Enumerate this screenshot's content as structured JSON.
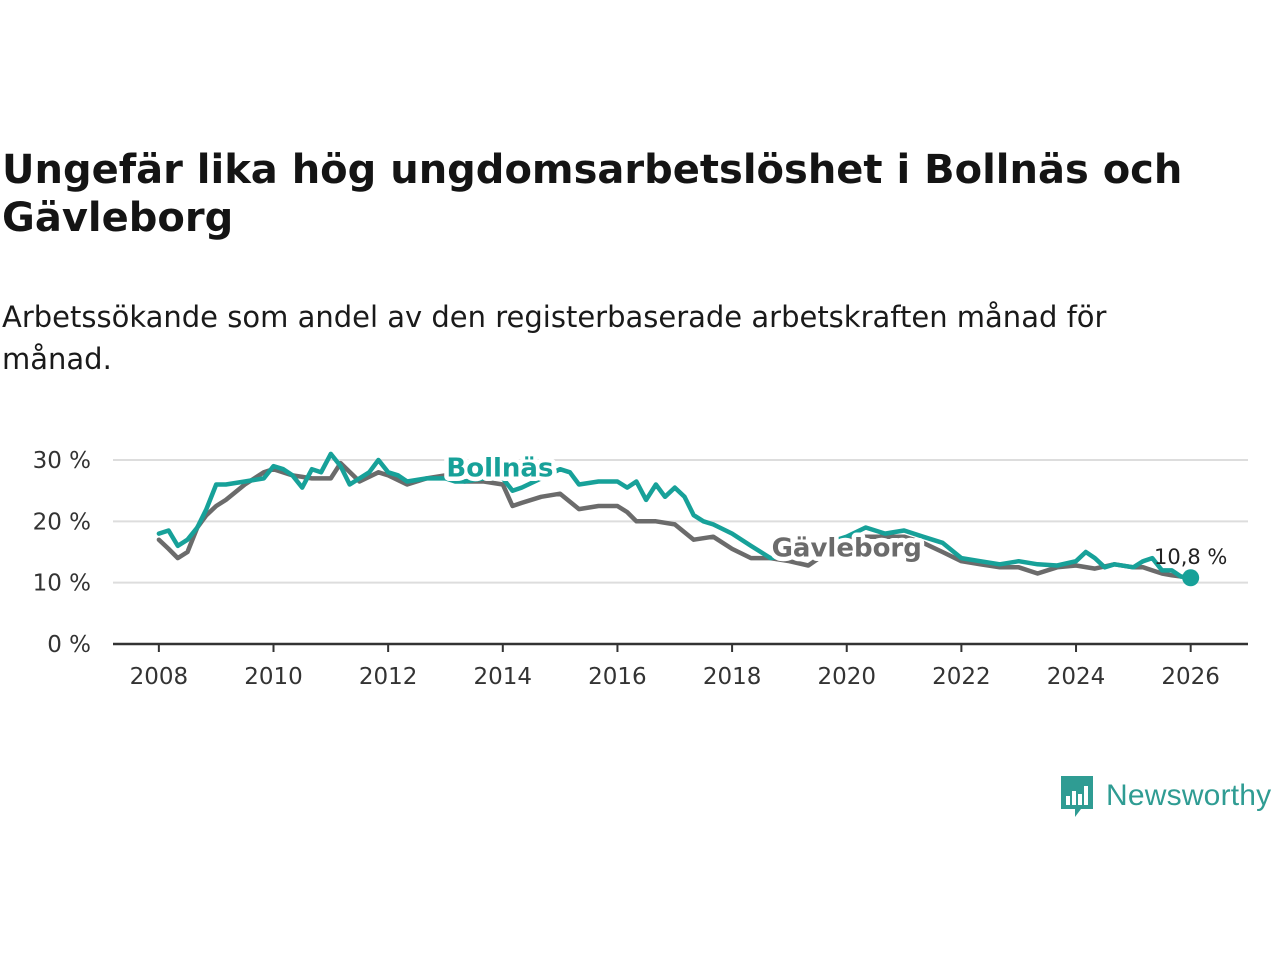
{
  "title": "Ungefär lika hög ungdomsarbetslöshet i Bollnäs och Gävleborg",
  "subtitle": "Arbetssökande som andel av den registerbaserade arbetskraften månad för månad.",
  "brand": {
    "name": "Newsworthy",
    "icon": "newsworthy-logo-icon",
    "color": "#2f9c93"
  },
  "chart_data": {
    "type": "line",
    "title": "Ungefär lika hög ungdomsarbetslöshet i Bollnäs och Gävleborg",
    "xlabel": "",
    "ylabel": "",
    "xlim": [
      2007.2,
      2027
    ],
    "ylim": [
      0,
      30
    ],
    "grid": true,
    "x_ticks": [
      2008,
      2010,
      2012,
      2014,
      2016,
      2018,
      2020,
      2022,
      2024,
      2026
    ],
    "x_tick_labels": [
      "2008",
      "2010",
      "2012",
      "2014",
      "2016",
      "2018",
      "2020",
      "2022",
      "2024",
      "2026"
    ],
    "y_ticks": [
      0,
      10,
      20,
      30
    ],
    "y_tick_labels": [
      "0 %",
      "10 %",
      "20 %",
      "30 %"
    ],
    "series": [
      {
        "name": "Gävleborg",
        "label": "Gävleborg",
        "color": "#6b6b6b",
        "x": [
          2008.0,
          2008.17,
          2008.33,
          2008.5,
          2008.67,
          2008.83,
          2009.0,
          2009.17,
          2009.5,
          2009.83,
          2010.0,
          2010.33,
          2010.67,
          2011.0,
          2011.17,
          2011.5,
          2011.83,
          2012.0,
          2012.33,
          2012.67,
          2013.0,
          2013.33,
          2013.67,
          2014.0,
          2014.17,
          2014.33,
          2014.67,
          2015.0,
          2015.33,
          2015.67,
          2016.0,
          2016.17,
          2016.33,
          2016.67,
          2017.0,
          2017.33,
          2017.67,
          2018.0,
          2018.33,
          2018.67,
          2019.0,
          2019.33,
          2019.67,
          2020.0,
          2020.33,
          2020.67,
          2021.0,
          2021.33,
          2021.67,
          2022.0,
          2022.33,
          2022.67,
          2023.0,
          2023.33,
          2023.67,
          2024.0,
          2024.33,
          2024.67,
          2025.0,
          2025.17,
          2025.33,
          2025.5,
          2025.67,
          2026.0
        ],
        "values": [
          17,
          15.5,
          14,
          15,
          19,
          21,
          22.5,
          23.5,
          26,
          28,
          28.5,
          27.5,
          27,
          27,
          29.5,
          26.5,
          28,
          27.5,
          26,
          27,
          27.5,
          26.5,
          26.5,
          26,
          22.5,
          23,
          24,
          24.5,
          22,
          22.5,
          22.5,
          21.5,
          20,
          20,
          19.5,
          17,
          17.5,
          15.5,
          14,
          14,
          13.5,
          12.8,
          15,
          17,
          17.5,
          17.5,
          17.5,
          16.5,
          15,
          13.5,
          13,
          12.5,
          12.5,
          11.5,
          12.5,
          12.8,
          12.3,
          13,
          12.5,
          12.5,
          12,
          11.5,
          11.2,
          10.8
        ]
      },
      {
        "name": "Bollnäs",
        "label": "Bollnäs",
        "color": "#17a199",
        "end_label": "10,8 %",
        "x": [
          2008.0,
          2008.17,
          2008.33,
          2008.5,
          2008.67,
          2008.83,
          2009.0,
          2009.17,
          2009.5,
          2009.83,
          2010.0,
          2010.17,
          2010.33,
          2010.5,
          2010.67,
          2010.83,
          2011.0,
          2011.17,
          2011.33,
          2011.5,
          2011.67,
          2011.83,
          2012.0,
          2012.17,
          2012.33,
          2012.67,
          2013.0,
          2013.17,
          2013.33,
          2013.67,
          2014.0,
          2014.17,
          2014.33,
          2014.67,
          2015.0,
          2015.17,
          2015.33,
          2015.67,
          2016.0,
          2016.17,
          2016.33,
          2016.5,
          2016.67,
          2016.83,
          2017.0,
          2017.17,
          2017.33,
          2017.5,
          2017.67,
          2018.0,
          2018.33,
          2018.67,
          2019.0,
          2019.33,
          2019.67,
          2020.0,
          2020.33,
          2020.67,
          2021.0,
          2021.33,
          2021.67,
          2022.0,
          2022.33,
          2022.67,
          2023.0,
          2023.33,
          2023.67,
          2024.0,
          2024.17,
          2024.33,
          2024.5,
          2024.67,
          2025.0,
          2025.17,
          2025.33,
          2025.5,
          2025.67,
          2025.83,
          2026.0
        ],
        "values": [
          18,
          18.5,
          16,
          17,
          19,
          22,
          26,
          26,
          26.5,
          27,
          29,
          28.5,
          27.5,
          25.5,
          28.5,
          28,
          31,
          29,
          26,
          27,
          28,
          30,
          28,
          27.5,
          26.5,
          27,
          27,
          26.5,
          26.5,
          27,
          27,
          25,
          25.5,
          27,
          28.5,
          28,
          26,
          26.5,
          26.5,
          25.5,
          26.5,
          23.5,
          26,
          24,
          25.5,
          24,
          21,
          20,
          19.5,
          18,
          16,
          14,
          14.5,
          15,
          16.5,
          17.5,
          19,
          18,
          18.5,
          17.5,
          16.5,
          14,
          13.5,
          13,
          13.5,
          13,
          12.8,
          13.5,
          15,
          14,
          12.5,
          13,
          12.5,
          13.5,
          14,
          12,
          12,
          11,
          10.8
        ]
      }
    ]
  }
}
